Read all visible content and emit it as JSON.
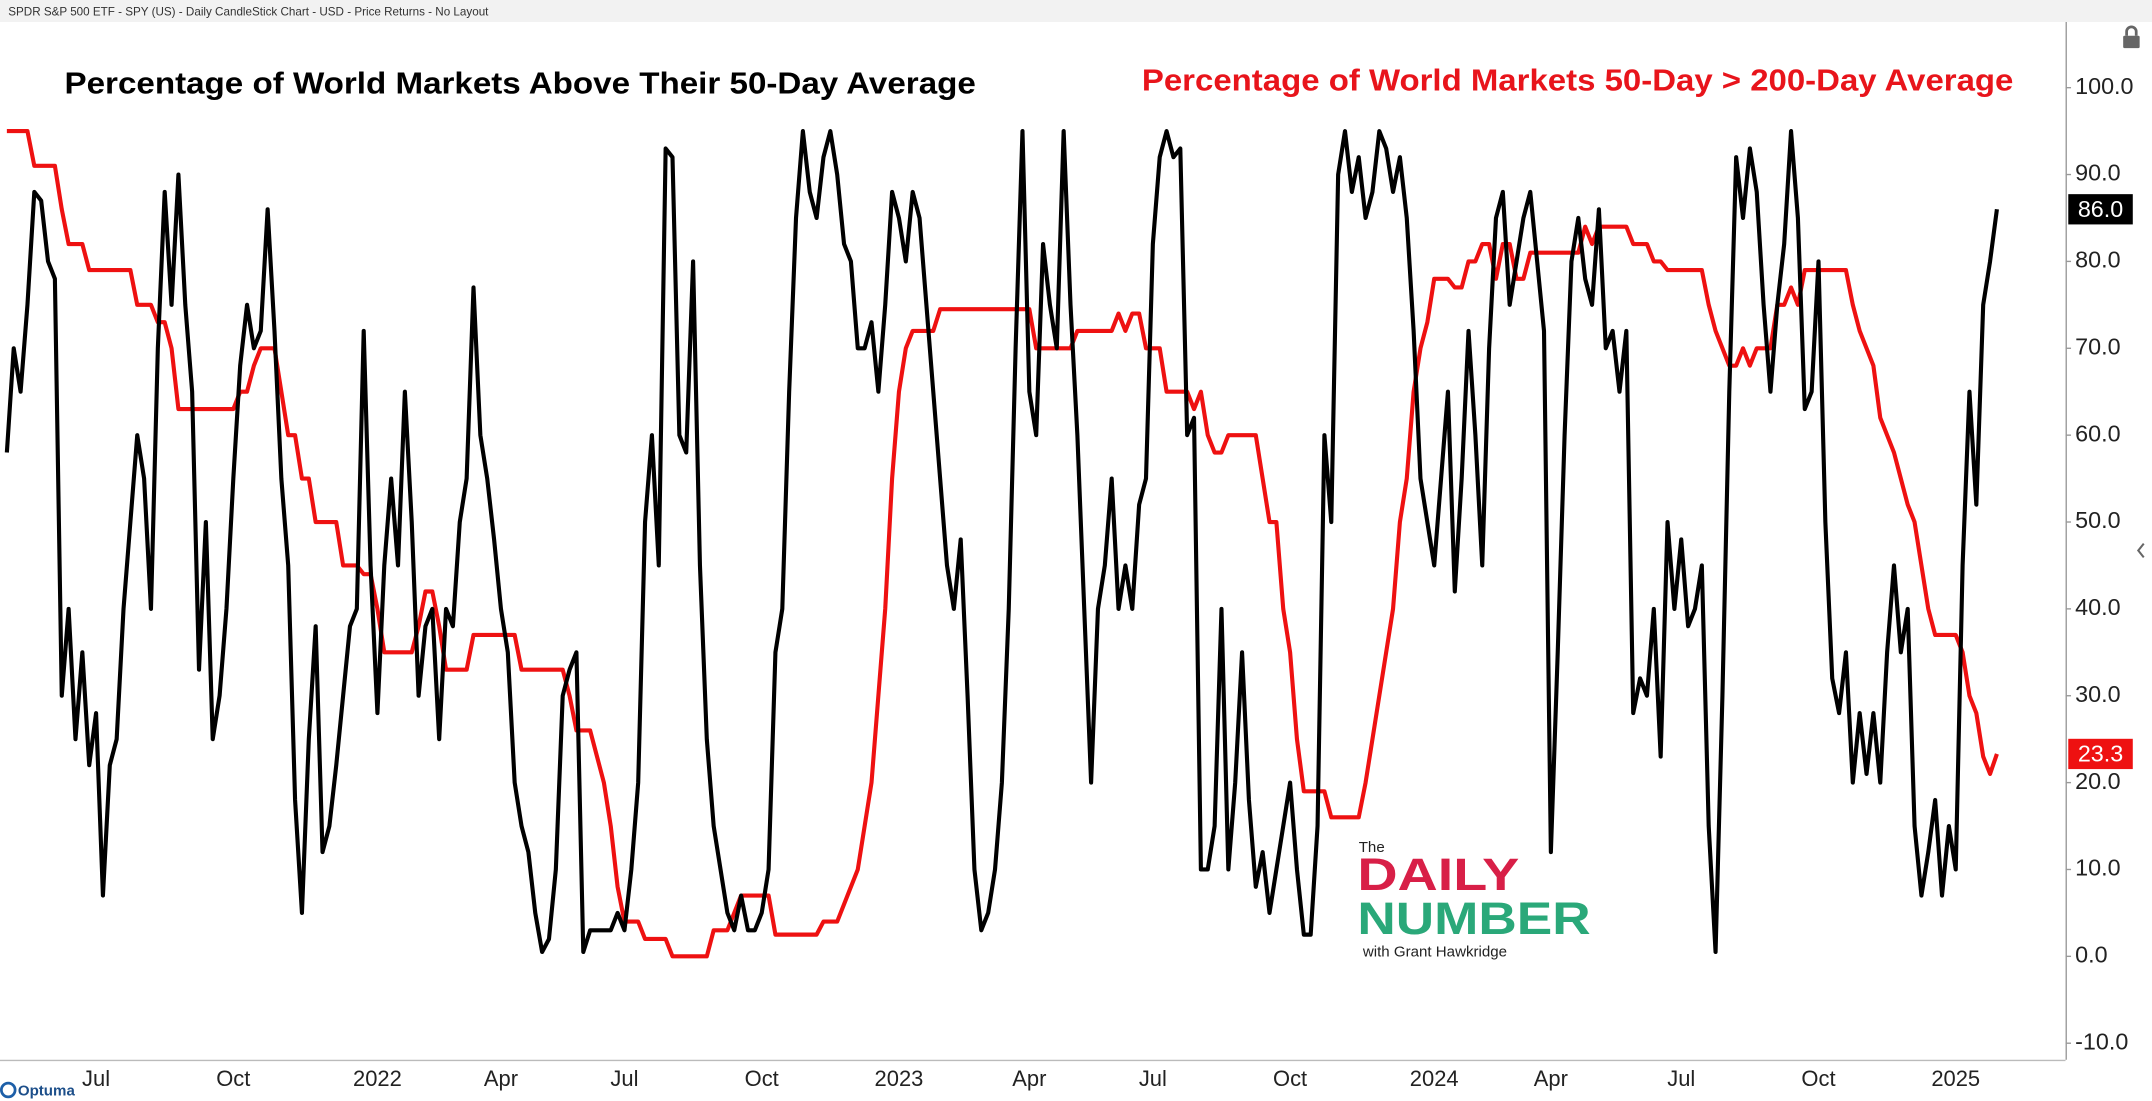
{
  "header": "SPDR S&P 500 ETF - SPY (US) - Daily CandleStick Chart - USD - Price Returns - No Layout",
  "brand": "Optuma",
  "logo": {
    "line1": "The",
    "line2": "DAILY",
    "line3": "NUMBER",
    "line4": "with Grant Hawkridge"
  },
  "chart_data": {
    "type": "line",
    "title": "Percentage of World Markets Above Their 50-Day Average",
    "subtitle": "Percentage of World Markets 50-Day > 200-Day Average",
    "grid": false,
    "ylim": [
      -11.9,
      107.4
    ],
    "yticks": [
      {
        "value": 100,
        "label": "100.0"
      },
      {
        "value": 90,
        "label": "90.0"
      },
      {
        "value": 80,
        "label": "80.0"
      },
      {
        "value": 70,
        "label": "70.0"
      },
      {
        "value": 60,
        "label": "60.0"
      },
      {
        "value": 50,
        "label": "50.0"
      },
      {
        "value": 40,
        "label": "40.0"
      },
      {
        "value": 30,
        "label": "30.0"
      },
      {
        "value": 20,
        "label": "20.0"
      },
      {
        "value": 10,
        "label": "10.0"
      },
      {
        "value": 0,
        "label": "0.0"
      },
      {
        "value": -10,
        "label": "-10.0"
      }
    ],
    "categories": [
      null,
      null,
      null,
      null,
      null,
      null,
      null,
      null,
      null,
      null,
      null,
      null,
      null,
      "Jul",
      null,
      null,
      null,
      null,
      null,
      null,
      null,
      null,
      null,
      null,
      null,
      null,
      null,
      null,
      null,
      null,
      null,
      null,
      null,
      "Oct",
      null,
      null,
      null,
      null,
      null,
      null,
      null,
      null,
      null,
      null,
      null,
      null,
      null,
      null,
      null,
      null,
      null,
      null,
      null,
      null,
      "2022",
      null,
      null,
      null,
      null,
      null,
      null,
      null,
      null,
      null,
      null,
      null,
      null,
      null,
      null,
      null,
      null,
      null,
      "Apr",
      null,
      null,
      null,
      null,
      null,
      null,
      null,
      null,
      null,
      null,
      null,
      null,
      null,
      null,
      null,
      null,
      null,
      "Jul",
      null,
      null,
      null,
      null,
      null,
      null,
      null,
      null,
      null,
      null,
      null,
      null,
      null,
      null,
      null,
      null,
      null,
      null,
      null,
      "Oct",
      null,
      null,
      null,
      null,
      null,
      null,
      null,
      null,
      null,
      null,
      null,
      null,
      null,
      null,
      null,
      null,
      null,
      null,
      null,
      "2023",
      null,
      null,
      null,
      null,
      null,
      null,
      null,
      null,
      null,
      null,
      null,
      null,
      null,
      null,
      null,
      null,
      null,
      null,
      "Apr",
      null,
      null,
      null,
      null,
      null,
      null,
      null,
      null,
      null,
      null,
      null,
      null,
      null,
      null,
      null,
      null,
      null,
      "Jul",
      null,
      null,
      null,
      null,
      null,
      null,
      null,
      null,
      null,
      null,
      null,
      null,
      null,
      null,
      null,
      null,
      null,
      null,
      null,
      "Oct",
      null,
      null,
      null,
      null,
      null,
      null,
      null,
      null,
      null,
      null,
      null,
      null,
      null,
      null,
      null,
      null,
      null,
      null,
      null,
      null,
      "2024",
      null,
      null,
      null,
      null,
      null,
      null,
      null,
      null,
      null,
      null,
      null,
      null,
      null,
      null,
      null,
      null,
      "Apr",
      null,
      null,
      null,
      null,
      null,
      null,
      null,
      null,
      null,
      null,
      null,
      null,
      null,
      null,
      null,
      null,
      null,
      null,
      "Jul",
      null,
      null,
      null,
      null,
      null,
      null,
      null,
      null,
      null,
      null,
      null,
      null,
      null,
      null,
      null,
      null,
      null,
      null,
      null,
      "Oct",
      null,
      null,
      null,
      null,
      null,
      null,
      null,
      null,
      null,
      null,
      null,
      null,
      null,
      null,
      null,
      null,
      null,
      null,
      null,
      "2025",
      null,
      null,
      null,
      null,
      null,
      null
    ],
    "series": [
      {
        "name": "Percentage of World Markets Above Their 50-Day Average",
        "color": "#000000",
        "values": [
          58,
          70,
          65,
          75,
          88,
          87,
          80,
          78,
          30,
          40,
          25,
          35,
          22,
          28,
          7,
          22,
          25,
          40,
          50,
          60,
          55,
          40,
          70,
          88,
          75,
          90,
          75,
          65,
          33,
          50,
          25,
          30,
          40,
          55,
          68,
          75,
          70,
          72,
          86,
          72,
          55,
          45,
          18,
          5,
          25,
          38,
          12,
          15,
          22,
          30,
          38,
          40,
          72,
          45,
          28,
          45,
          55,
          45,
          65,
          50,
          30,
          38,
          40,
          25,
          40,
          38,
          50,
          55,
          77,
          60,
          55,
          48,
          40,
          35,
          20,
          15,
          12,
          5,
          0.5,
          2,
          10,
          30,
          33,
          35,
          0.5,
          3,
          3,
          3,
          3,
          5,
          3,
          10,
          20,
          50,
          60,
          45,
          93,
          92,
          60,
          58,
          80,
          45,
          25,
          15,
          10,
          5,
          3,
          7,
          3,
          3,
          5,
          10,
          35,
          40,
          65,
          85,
          95,
          88,
          85,
          92,
          95,
          90,
          82,
          80,
          70,
          70,
          73,
          65,
          75,
          88,
          85,
          80,
          88,
          85,
          75,
          65,
          55,
          45,
          40,
          48,
          30,
          10,
          3,
          5,
          10,
          20,
          40,
          70,
          95,
          65,
          60,
          82,
          75,
          70,
          95,
          75,
          60,
          40,
          20,
          40,
          45,
          55,
          40,
          45,
          40,
          52,
          55,
          82,
          92,
          95,
          92,
          93,
          60,
          62,
          10,
          10,
          15,
          40,
          10,
          20,
          35,
          18,
          8,
          12,
          5,
          10,
          15,
          20,
          10,
          2.5,
          2.5,
          15,
          60,
          50,
          90,
          95,
          88,
          92,
          85,
          88,
          95,
          93,
          88,
          92,
          85,
          72,
          55,
          50,
          45,
          55,
          65,
          42,
          55,
          72,
          60,
          45,
          70,
          85,
          88,
          75,
          80,
          85,
          88,
          80,
          72,
          12,
          35,
          60,
          80,
          85,
          78,
          75,
          86,
          70,
          72,
          65,
          72,
          28,
          32,
          30,
          40,
          23,
          50,
          40,
          48,
          38,
          40,
          45,
          15,
          0.5,
          30,
          65,
          92,
          85,
          93,
          88,
          75,
          65,
          75,
          82,
          95,
          85,
          63,
          65,
          80,
          50,
          32,
          28,
          35,
          20,
          28,
          21,
          28,
          20,
          35,
          45,
          35,
          40,
          15,
          7,
          12,
          18,
          7,
          15,
          10,
          45,
          65,
          52,
          75,
          80,
          86
        ],
        "value_labels": {
          "290": "86.0"
        }
      },
      {
        "name": "Percentage of World Markets 50-Day > 200-Day Average",
        "color": "#ee1111",
        "values": [
          95,
          95,
          95,
          95,
          91,
          91,
          91,
          91,
          86,
          82,
          82,
          82,
          79,
          79,
          79,
          79,
          79,
          79,
          79,
          75,
          75,
          75,
          73,
          73,
          70,
          63,
          63,
          63,
          63,
          63,
          63,
          63,
          63,
          63,
          65,
          65,
          68,
          70,
          70,
          70,
          65,
          60,
          60,
          55,
          55,
          50,
          50,
          50,
          50,
          45,
          45,
          45,
          44,
          44,
          40,
          35,
          35,
          35,
          35,
          35,
          38,
          42,
          42,
          38,
          33,
          33,
          33,
          33,
          37,
          37,
          37,
          37,
          37,
          37,
          37,
          33,
          33,
          33,
          33,
          33,
          33,
          33,
          30,
          26,
          26,
          26,
          23,
          20,
          15,
          8,
          4,
          4,
          4,
          2,
          2,
          2,
          2,
          0,
          0,
          0,
          0,
          0,
          0,
          3,
          3,
          3,
          5,
          7,
          7,
          7,
          7,
          7,
          2.5,
          2.5,
          2.5,
          2.5,
          2.5,
          2.5,
          2.5,
          4,
          4,
          4,
          6,
          8,
          10,
          15,
          20,
          30,
          40,
          55,
          65,
          70,
          72,
          72,
          72,
          72,
          74.5,
          74.5,
          74.5,
          74.5,
          74.5,
          74.5,
          74.5,
          74.5,
          74.5,
          74.5,
          74.5,
          74.5,
          74.5,
          74.5,
          70,
          70,
          70,
          70,
          70,
          70,
          72,
          72,
          72,
          72,
          72,
          72,
          74,
          72,
          74,
          74,
          70,
          70,
          70,
          65,
          65,
          65,
          65,
          63,
          65,
          60,
          58,
          58,
          60,
          60,
          60,
          60,
          60,
          55,
          50,
          50,
          40,
          35,
          25,
          19,
          19,
          19,
          19,
          16,
          16,
          16,
          16,
          16,
          20,
          25,
          30,
          35,
          40,
          50,
          55,
          65,
          70,
          73,
          78,
          78,
          78,
          77,
          77,
          80,
          80,
          82,
          82,
          78,
          82,
          82,
          78,
          78,
          81,
          81,
          81,
          81,
          81,
          81,
          81,
          81,
          84,
          82,
          84,
          84,
          84,
          84,
          84,
          82,
          82,
          82,
          80,
          80,
          79,
          79,
          79,
          79,
          79,
          79,
          75,
          72,
          70,
          68,
          68,
          70,
          68,
          70,
          70,
          70,
          75,
          75,
          77,
          75,
          79,
          79,
          79,
          79,
          79,
          79,
          79,
          75,
          72,
          70,
          68,
          62,
          60,
          58,
          55,
          52,
          50,
          45,
          40,
          37,
          37,
          37,
          37,
          35,
          30,
          28,
          23,
          21,
          23.3
        ],
        "value_labels": {
          "290": "23.3"
        }
      }
    ]
  }
}
